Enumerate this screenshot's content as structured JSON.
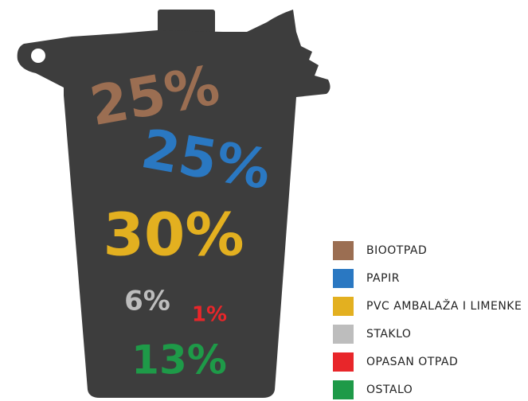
{
  "chart_data": {
    "type": "pictogram",
    "categories": [
      "BIOOTPAD",
      "PAPIR",
      "PVC AMBALAŽA I LIMENKE",
      "STAKLO",
      "OPASAN OTPAD",
      "OSTALO"
    ],
    "values": [
      25,
      25,
      30,
      6,
      1,
      13
    ],
    "value_labels": [
      "25%",
      "25%",
      "30%",
      "6%",
      "1%",
      "13%"
    ],
    "colors": [
      "#9b6e52",
      "#2a78c2",
      "#e3b020",
      "#bdbdbd",
      "#e8262a",
      "#1e9a48"
    ]
  }
}
